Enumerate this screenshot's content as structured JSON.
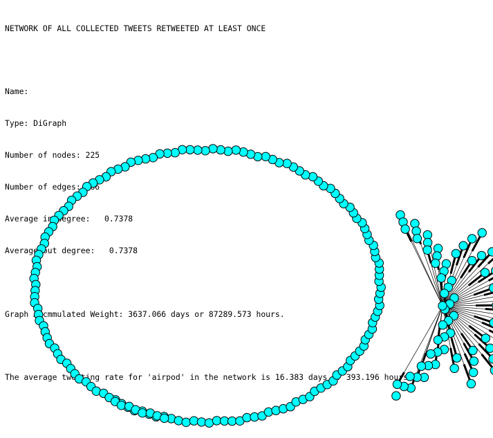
{
  "title": "NETWORK OF ALL COLLECTED TWEETS RETWEETED AT LEAST ONCE",
  "stats": {
    "name": "Name:",
    "type": "Type: DiGraph",
    "nodes": "Number of nodes: 225",
    "edges": "Number of edges: 166",
    "avg_in": "Average in degree:   0.7378",
    "avg_out": "Average out degree:   0.7378"
  },
  "weight_line": "Graph Accmmulated Weight: 3637.066 days or 87289.573 hours.",
  "rate_line": "The average tweeting rate for 'airpod' in the network is 16.383 days or 393.196 hours.",
  "graph": {
    "node_count": 225,
    "edge_count": 166,
    "node_color": "#00ffff",
    "node_stroke": "#000000",
    "edge_color": "#000000"
  }
}
